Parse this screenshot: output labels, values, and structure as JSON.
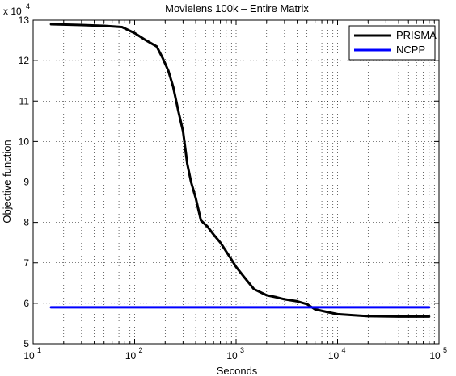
{
  "chart_data": {
    "type": "line",
    "title": "Movielens 100k – Entire Matrix",
    "xlabel": "Seconds",
    "ylabel": "Objective function",
    "x_scale": "log",
    "xlim": [
      10,
      100000
    ],
    "ylim": [
      50000,
      130000
    ],
    "x_ticks": [
      10,
      100,
      1000,
      10000,
      100000
    ],
    "x_tick_labels": [
      {
        "base": "10",
        "exp": "1"
      },
      {
        "base": "10",
        "exp": "2"
      },
      {
        "base": "10",
        "exp": "3"
      },
      {
        "base": "10",
        "exp": "4"
      },
      {
        "base": "10",
        "exp": "5"
      }
    ],
    "y_ticks": [
      50000,
      60000,
      70000,
      80000,
      90000,
      100000,
      110000,
      120000,
      130000
    ],
    "y_tick_labels": [
      "5",
      "6",
      "7",
      "8",
      "9",
      "10",
      "11",
      "12",
      "13"
    ],
    "y_multiplier": {
      "base": "x 10",
      "exp": "4"
    },
    "grid": true,
    "legend_position": "top-right",
    "series": [
      {
        "name": "PRISMA",
        "color": "#000000",
        "x": [
          15,
          30,
          50,
          75,
          100,
          130,
          165,
          190,
          215,
          240,
          270,
          300,
          330,
          360,
          400,
          450,
          520,
          600,
          700,
          800,
          900,
          1000,
          1200,
          1500,
          2000,
          2500,
          3000,
          4000,
          5000,
          6000,
          8000,
          10000,
          15000,
          20000,
          40000,
          80000
        ],
        "y": [
          129000,
          128800,
          128600,
          128300,
          126800,
          125000,
          123500,
          120500,
          117500,
          113500,
          107500,
          102500,
          94500,
          90000,
          86000,
          80500,
          79000,
          77000,
          75000,
          72800,
          70800,
          69000,
          66500,
          63500,
          62000,
          61500,
          61000,
          60500,
          59800,
          58500,
          57800,
          57300,
          57000,
          56800,
          56700,
          56700
        ]
      },
      {
        "name": "NCPP",
        "color": "#0000ff",
        "x": [
          15,
          80000
        ],
        "y": [
          59000,
          59000
        ]
      }
    ]
  }
}
